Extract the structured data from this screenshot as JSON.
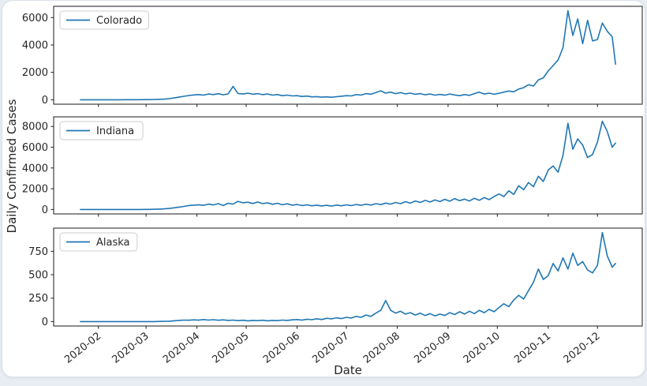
{
  "figure": {
    "page_background": "#e8edf3",
    "card_background": "#ffffff",
    "card_border": "#d9e0e9",
    "spine_color": "#1a1a1a",
    "text_color": "#262626",
    "line_color": "#1f77b4",
    "legend_border": "#cccccc"
  },
  "chart_data": {
    "type": "line",
    "title": "",
    "xlabel": "Date",
    "ylabel": "Daily Confirmed Cases",
    "legend_position": "upper left",
    "grid": false,
    "x_unit": "days since 2020-01-21",
    "x": [
      0,
      3,
      6,
      9,
      12,
      15,
      18,
      21,
      24,
      27,
      30,
      33,
      36,
      39,
      42,
      45,
      48,
      51,
      54,
      57,
      60,
      63,
      66,
      69,
      72,
      75,
      78,
      81,
      84,
      87,
      90,
      93,
      96,
      99,
      102,
      105,
      108,
      111,
      114,
      117,
      120,
      123,
      126,
      129,
      132,
      135,
      138,
      141,
      144,
      147,
      150,
      153,
      156,
      159,
      162,
      165,
      168,
      171,
      174,
      177,
      180,
      183,
      186,
      189,
      192,
      195,
      198,
      201,
      204,
      207,
      210,
      213,
      216,
      219,
      222,
      225,
      228,
      231,
      234,
      237,
      240,
      243,
      246,
      249,
      252,
      255,
      258,
      261,
      264,
      267,
      270,
      273,
      276,
      279,
      282,
      285,
      288,
      291,
      294,
      297,
      300,
      303,
      306,
      309,
      312,
      315,
      318,
      321,
      324,
      326
    ],
    "xticks": [
      {
        "label": "2020-02",
        "day": 11
      },
      {
        "label": "2020-03",
        "day": 40
      },
      {
        "label": "2020-04",
        "day": 71
      },
      {
        "label": "2020-05",
        "day": 101
      },
      {
        "label": "2020-06",
        "day": 132
      },
      {
        "label": "2020-07",
        "day": 162
      },
      {
        "label": "2020-08",
        "day": 193
      },
      {
        "label": "2020-09",
        "day": 224
      },
      {
        "label": "2020-10",
        "day": 254
      },
      {
        "label": "2020-11",
        "day": 285
      },
      {
        "label": "2020-12",
        "day": 315
      }
    ],
    "panels": [
      {
        "legend": "Colorado",
        "yticks": [
          0,
          2000,
          4000,
          6000
        ],
        "ymax": 6500,
        "values": [
          0,
          0,
          0,
          0,
          0,
          0,
          0,
          0,
          0,
          1,
          2,
          3,
          5,
          8,
          12,
          20,
          30,
          45,
          80,
          130,
          190,
          250,
          310,
          350,
          380,
          340,
          420,
          380,
          440,
          360,
          430,
          980,
          460,
          420,
          480,
          400,
          450,
          370,
          420,
          340,
          380,
          300,
          340,
          280,
          300,
          240,
          270,
          210,
          230,
          190,
          210,
          180,
          220,
          260,
          300,
          280,
          380,
          340,
          450,
          400,
          520,
          650,
          480,
          560,
          450,
          520,
          430,
          480,
          400,
          450,
          360,
          420,
          340,
          390,
          330,
          420,
          350,
          300,
          380,
          320,
          450,
          560,
          420,
          480,
          400,
          470,
          560,
          640,
          580,
          780,
          880,
          1100,
          1000,
          1450,
          1600,
          2100,
          2500,
          2900,
          3800,
          6500,
          4700,
          5900,
          4100,
          5800,
          4300,
          4400,
          5600,
          5000,
          4600,
          2600
        ]
      },
      {
        "legend": "Indiana",
        "yticks": [
          0,
          2000,
          4000,
          6000,
          8000
        ],
        "ymax": 8500,
        "values": [
          0,
          0,
          0,
          0,
          0,
          0,
          0,
          0,
          0,
          0,
          1,
          2,
          4,
          7,
          12,
          20,
          35,
          60,
          100,
          160,
          230,
          300,
          380,
          420,
          460,
          400,
          520,
          440,
          560,
          380,
          600,
          520,
          780,
          650,
          700,
          580,
          720,
          560,
          650,
          500,
          600,
          460,
          550,
          420,
          480,
          380,
          450,
          360,
          420,
          340,
          400,
          330,
          430,
          360,
          450,
          380,
          480,
          400,
          520,
          430,
          560,
          470,
          620,
          520,
          680,
          560,
          750,
          620,
          820,
          680,
          880,
          720,
          920,
          760,
          980,
          800,
          1050,
          850,
          1000,
          820,
          1080,
          880,
          1150,
          950,
          1250,
          1500,
          1250,
          1800,
          1450,
          2300,
          1900,
          2600,
          2200,
          3200,
          2700,
          3800,
          4200,
          3600,
          5200,
          8300,
          5800,
          6800,
          6200,
          5000,
          5300,
          6500,
          8500,
          7500,
          6000,
          6400
        ]
      },
      {
        "legend": "Alaska",
        "yticks": [
          0,
          250,
          500,
          750
        ],
        "ymax": 950,
        "values": [
          0,
          0,
          0,
          0,
          0,
          0,
          0,
          0,
          0,
          0,
          0,
          0,
          0,
          0,
          0,
          0,
          1,
          2,
          4,
          8,
          12,
          16,
          14,
          18,
          15,
          22,
          16,
          20,
          14,
          18,
          12,
          16,
          10,
          14,
          8,
          12,
          10,
          14,
          8,
          12,
          10,
          16,
          12,
          18,
          22,
          16,
          25,
          20,
          30,
          22,
          35,
          28,
          40,
          32,
          45,
          38,
          55,
          45,
          70,
          55,
          90,
          120,
          225,
          120,
          90,
          110,
          80,
          95,
          70,
          90,
          65,
          85,
          60,
          80,
          65,
          95,
          75,
          105,
          80,
          110,
          85,
          120,
          95,
          130,
          105,
          150,
          190,
          160,
          230,
          280,
          240,
          330,
          420,
          560,
          450,
          490,
          620,
          540,
          680,
          560,
          730,
          600,
          640,
          550,
          520,
          600,
          950,
          700,
          580,
          620
        ]
      }
    ]
  }
}
